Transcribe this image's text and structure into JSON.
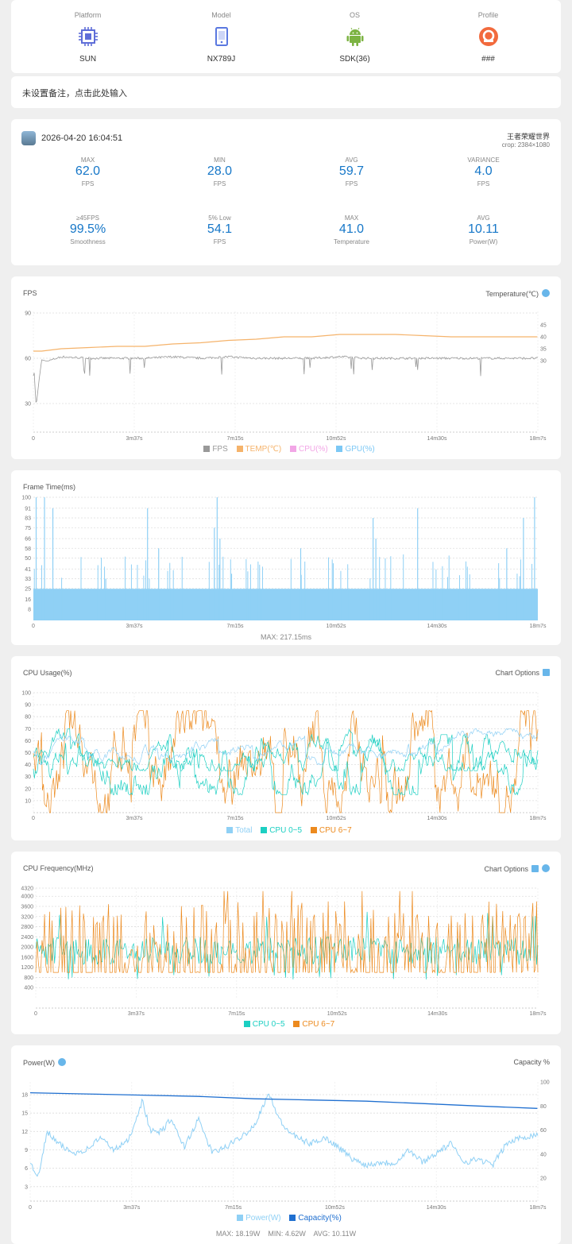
{
  "device": {
    "items": [
      {
        "label": "Platform",
        "value": "SUN",
        "icon": "chip-icon"
      },
      {
        "label": "Model",
        "value": "NX789J",
        "icon": "phone-icon"
      },
      {
        "label": "OS",
        "value": "SDK(36)",
        "icon": "android-icon"
      },
      {
        "label": "Profile",
        "value": "###",
        "icon": "profile-icon"
      }
    ]
  },
  "note": {
    "placeholder": "未设置备注，点击此处输入"
  },
  "summary": {
    "datetime": "2026-04-20 16:04:51",
    "game": "王者荣耀世界",
    "crop": "crop: 2384×1080",
    "stats": [
      {
        "caption": "MAX",
        "value": "62.0",
        "unit": "FPS"
      },
      {
        "caption": "MIN",
        "value": "28.0",
        "unit": "FPS"
      },
      {
        "caption": "AVG",
        "value": "59.7",
        "unit": "FPS"
      },
      {
        "caption": "VARIANCE",
        "value": "4.0",
        "unit": "FPS"
      },
      {
        "caption": "≥45FPS",
        "value": "99.5%",
        "unit": "Smoothness"
      },
      {
        "caption": "5% Low",
        "value": "54.1",
        "unit": "FPS"
      },
      {
        "caption": "MAX",
        "value": "41.0",
        "unit": "Temperature"
      },
      {
        "caption": "AVG",
        "value": "10.11",
        "unit": "Power(W)"
      }
    ]
  },
  "colors": {
    "accent": "#1677c8",
    "fps": "#999999",
    "temp": "#f5b36b",
    "cpu": "#f2a6e6",
    "gpu": "#7cc8f5",
    "frametime": "#8fd0f5",
    "total": "#8fd0f5",
    "cpu_small": "#1ccfc2",
    "cpu_big": "#ec8a1e",
    "power": "#8fd0f5",
    "capacity": "#1f6fd0"
  },
  "chart_data": [
    {
      "type": "line",
      "title": "FPS",
      "right_label": "Temperature(℃)",
      "x_ticks": [
        "0",
        "3m37s",
        "7m15s",
        "10m52s",
        "14m30s",
        "18m7s"
      ],
      "y_ticks": [
        "90",
        "60",
        "30"
      ],
      "y2_ticks": [
        "45",
        "40",
        "35",
        "30"
      ],
      "legend": [
        "FPS",
        "TEMP(℃)",
        "CPU(%)",
        "GPU(%)"
      ],
      "series": [
        {
          "name": "FPS",
          "x": [
            0,
            0.1,
            0.2,
            0.3,
            0.5,
            1,
            2,
            3,
            4,
            5,
            6,
            7,
            8,
            9,
            10,
            11,
            12,
            13,
            14,
            15,
            16,
            17,
            18.1
          ],
          "values": [
            60,
            28,
            45,
            59,
            58,
            61,
            60,
            60,
            60,
            61,
            60,
            61,
            60,
            60,
            60,
            61,
            60,
            60,
            60,
            60,
            60,
            60,
            60
          ]
        },
        {
          "name": "TEMP(℃)",
          "x": [
            0,
            0.3,
            1,
            2,
            3,
            4,
            5,
            6,
            7,
            8,
            9,
            10,
            11,
            12,
            13,
            14,
            15,
            16,
            17,
            18.1
          ],
          "values": [
            34,
            34,
            35,
            35.5,
            36,
            36,
            37,
            37.5,
            38.5,
            39,
            40,
            40,
            41,
            41,
            41,
            40.5,
            40,
            40,
            40,
            40
          ]
        }
      ]
    },
    {
      "type": "bar",
      "title": "Frame Time(ms)",
      "x_ticks": [
        "0",
        "3m37s",
        "7m15s",
        "10m52s",
        "14m30s",
        "18m7s"
      ],
      "y_ticks": [
        "100",
        "91",
        "83",
        "75",
        "66",
        "58",
        "50",
        "41",
        "33",
        "25",
        "16",
        "8"
      ],
      "typical_value": 16.7,
      "spikes": [
        [
          0.1,
          100
        ],
        [
          0.4,
          100
        ],
        [
          0.7,
          91
        ],
        [
          2.6,
          33
        ],
        [
          4.1,
          91
        ],
        [
          4.5,
          58
        ],
        [
          6.5,
          75
        ],
        [
          6.6,
          100
        ],
        [
          6.7,
          66
        ],
        [
          9.6,
          58
        ],
        [
          12.2,
          83
        ],
        [
          12.3,
          66
        ],
        [
          13.8,
          91
        ],
        [
          17,
          58
        ],
        [
          17.6,
          83
        ],
        [
          18,
          100
        ]
      ],
      "footer": "MAX: 217.15ms"
    },
    {
      "type": "line",
      "title": "CPU Usage(%)",
      "right_label": "Chart Options",
      "x_ticks": [
        "0",
        "3m37s",
        "7m15s",
        "10m52s",
        "14m30s",
        "18m7s"
      ],
      "y_ticks": [
        "100",
        "90",
        "80",
        "70",
        "60",
        "50",
        "40",
        "30",
        "20",
        "10"
      ],
      "legend": [
        "Total",
        "CPU 0~5",
        "CPU 6~7"
      ],
      "series": [
        {
          "name": "CPU 0~5",
          "typical_low": 30,
          "typical_high": 55
        },
        {
          "name": "CPU 6~7",
          "typical_low": 5,
          "typical_high": 70
        }
      ]
    },
    {
      "type": "line",
      "title": "CPU Frequency(MHz)",
      "right_label": "Chart Options",
      "x_ticks": [
        "0",
        "3m37s",
        "7m15s",
        "10m52s",
        "14m30s",
        "18m7s"
      ],
      "y_ticks": [
        "4320",
        "4000",
        "3600",
        "3200",
        "2800",
        "2400",
        "2000",
        "1600",
        "1200",
        "800",
        "400"
      ],
      "legend": [
        "CPU 0~5",
        "CPU 6~7"
      ],
      "series": [
        {
          "name": "CPU 0~5",
          "typical_low": 1300,
          "typical_high": 2400
        },
        {
          "name": "CPU 6~7",
          "typical_low": 1000,
          "typical_high": 3800
        }
      ]
    },
    {
      "type": "line",
      "title": "Power(W)",
      "right_label": "Capacity %",
      "x_ticks": [
        "0",
        "3m37s",
        "7m15s",
        "10m52s",
        "14m30s",
        "18m7s"
      ],
      "y_ticks": [
        "18",
        "15",
        "12",
        "9",
        "6",
        "3"
      ],
      "y2_ticks": [
        "100",
        "80",
        "60",
        "40",
        "20"
      ],
      "legend": [
        "Power(W)",
        "Capacity(%)"
      ],
      "series": [
        {
          "name": "Power(W)",
          "x": [
            0,
            0.3,
            0.6,
            1,
            1.5,
            2,
            2.5,
            3,
            3.5,
            4,
            4.3,
            4.7,
            5,
            5.5,
            6,
            6.5,
            7,
            7.5,
            8,
            8.5,
            9,
            9.5,
            10,
            10.5,
            11,
            11.5,
            12,
            12.5,
            13,
            13.5,
            14,
            14.5,
            15,
            15.5,
            16,
            16.5,
            17,
            17.5,
            18.1
          ],
          "values": [
            7,
            4.6,
            12,
            10,
            8.5,
            9,
            11,
            9,
            10.5,
            17,
            12,
            12,
            14,
            9.5,
            14,
            8.5,
            9.5,
            11,
            13,
            18.2,
            13,
            11,
            10,
            11,
            9.5,
            7.5,
            6.5,
            7,
            6.8,
            9,
            7,
            8.5,
            10,
            7,
            7.5,
            6.5,
            10,
            11,
            11.5
          ]
        },
        {
          "name": "Capacity(%)",
          "x": [
            0,
            2,
            4,
            6,
            8,
            10,
            12,
            14,
            16,
            18.1
          ],
          "values": [
            91,
            90,
            89,
            88,
            86,
            85,
            84,
            82,
            80,
            78
          ]
        }
      ],
      "footer": {
        "max": "MAX: 18.19W",
        "min": "MIN: 4.62W",
        "avg": "AVG: 10.11W"
      }
    }
  ]
}
